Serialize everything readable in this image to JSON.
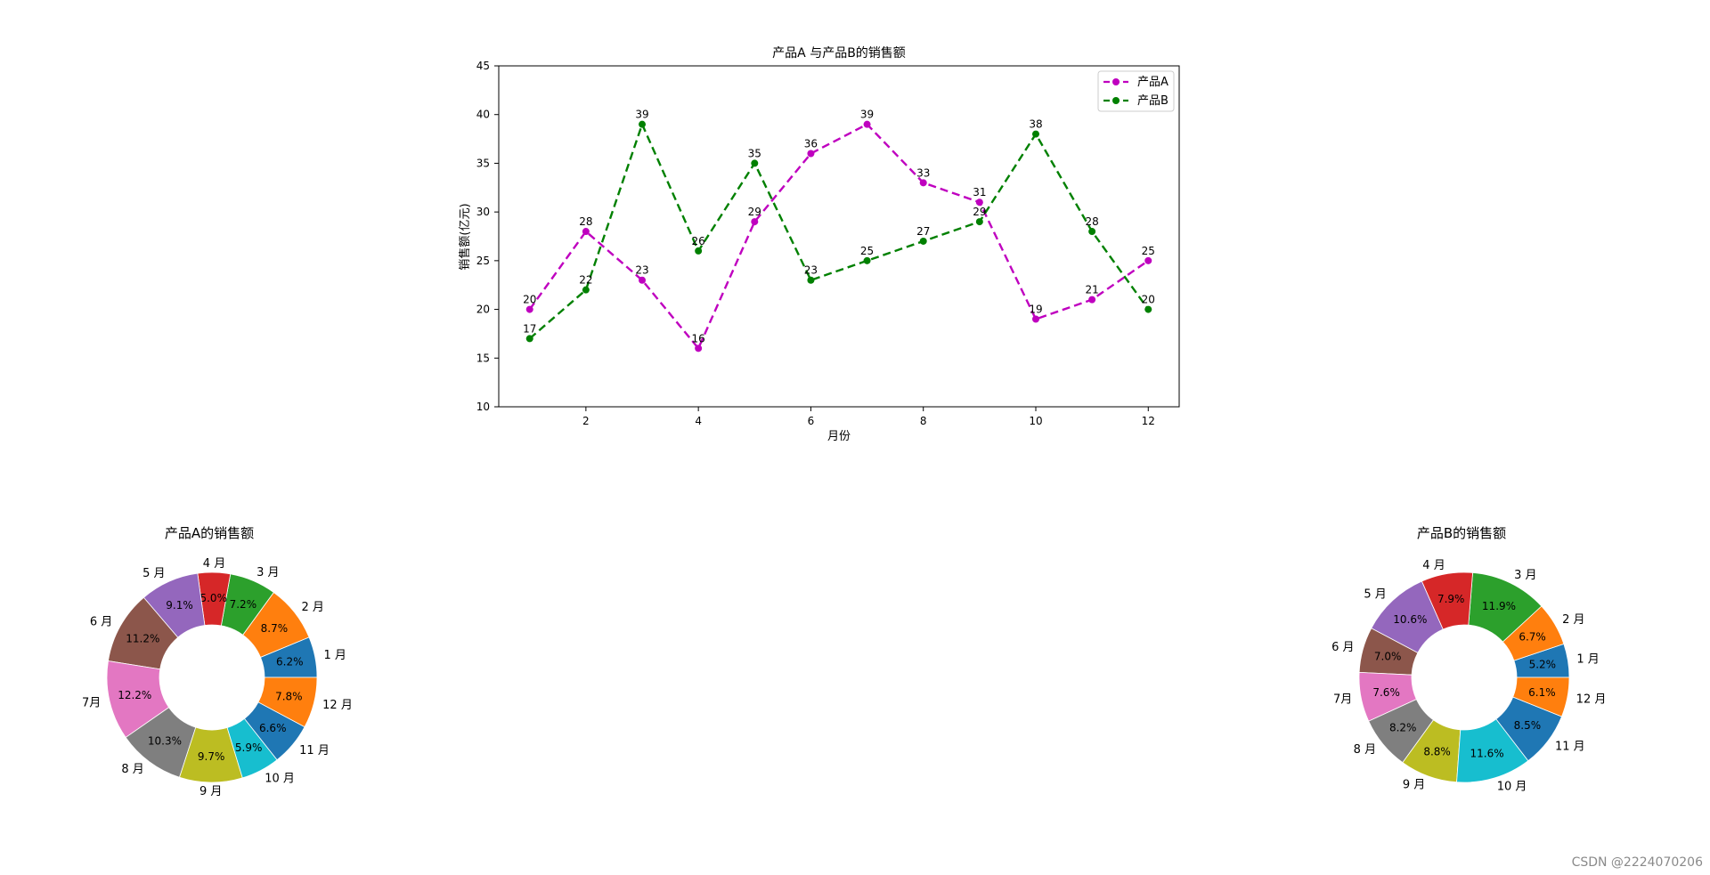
{
  "chart_data": [
    {
      "type": "line",
      "title": "产品A 与产品B的销售额",
      "xlabel": "月份",
      "ylabel": "销售额(亿元)",
      "x": [
        1,
        2,
        3,
        4,
        5,
        6,
        7,
        8,
        9,
        10,
        11,
        12
      ],
      "xticks": [
        2,
        4,
        6,
        8,
        10,
        12
      ],
      "xlim": [
        0.45,
        12.55
      ],
      "yticks": [
        10,
        15,
        20,
        25,
        30,
        35,
        40,
        45
      ],
      "ylim": [
        10,
        45
      ],
      "grid": false,
      "legend_position": "top-right",
      "series": [
        {
          "name": "产品A",
          "color": "#bf00bf",
          "line_style": "dashed",
          "marker": "circle",
          "values": [
            20,
            28,
            23,
            16,
            29,
            36,
            39,
            33,
            31,
            19,
            21,
            25
          ]
        },
        {
          "name": "产品B",
          "color": "#008000",
          "line_style": "dashed",
          "marker": "circle",
          "values": [
            17,
            22,
            39,
            26,
            35,
            23,
            25,
            27,
            29,
            38,
            28,
            20
          ]
        }
      ]
    },
    {
      "type": "pie",
      "style": "donut",
      "title": "产品A的销售额",
      "labels": [
        "1 月",
        "2 月",
        "3 月",
        "4 月",
        "5 月",
        "6 月",
        "7月",
        "8 月",
        "9 月",
        "10 月",
        "11 月",
        "12 月"
      ],
      "values": [
        20,
        28,
        23,
        16,
        29,
        36,
        39,
        33,
        31,
        19,
        21,
        25
      ],
      "percent_labels": [
        "6.2%",
        "8.7%",
        "7.2%",
        "5.0%",
        "9.1%",
        "11.2%",
        "12.2%",
        "10.3%",
        "9.7%",
        "5.9%",
        "6.6%",
        "7.8%"
      ],
      "colors": [
        "#1f77b4",
        "#ff7f0e",
        "#2ca02c",
        "#d62728",
        "#9467bd",
        "#8c564b",
        "#e377c2",
        "#7f7f7f",
        "#bcbd22",
        "#17becf",
        "#1f77b4",
        "#ff7f0e"
      ]
    },
    {
      "type": "pie",
      "style": "donut",
      "title": "产品B的销售额",
      "labels": [
        "1 月",
        "2 月",
        "3 月",
        "4 月",
        "5 月",
        "6 月",
        "7月",
        "8 月",
        "9 月",
        "10 月",
        "11 月",
        "12 月"
      ],
      "values": [
        17,
        22,
        39,
        26,
        35,
        23,
        25,
        27,
        29,
        38,
        28,
        20
      ],
      "percent_labels": [
        "5.2%",
        "6.7%",
        "11.9%",
        "7.9%",
        "10.6%",
        "7.0%",
        "7.6%",
        "8.2%",
        "8.8%",
        "11.6%",
        "8.5%",
        "6.1%"
      ],
      "colors": [
        "#1f77b4",
        "#ff7f0e",
        "#2ca02c",
        "#d62728",
        "#9467bd",
        "#8c564b",
        "#e377c2",
        "#7f7f7f",
        "#bcbd22",
        "#17becf",
        "#1f77b4",
        "#ff7f0e"
      ]
    }
  ],
  "watermark": "CSDN @2224070206"
}
